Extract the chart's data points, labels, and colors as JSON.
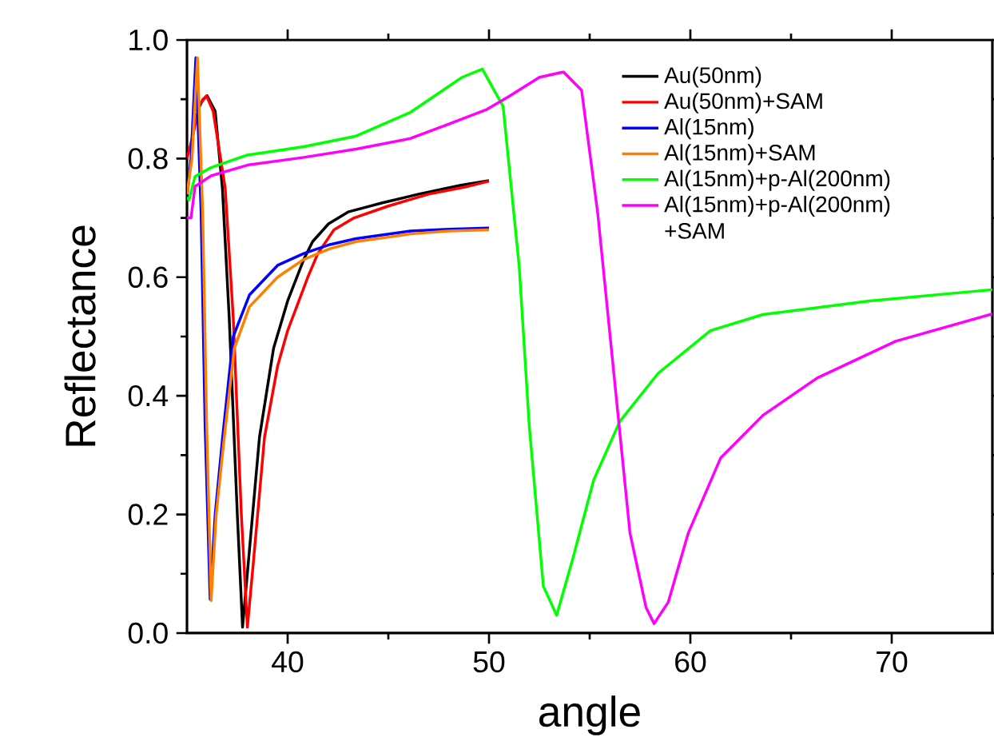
{
  "chart_data": {
    "type": "line",
    "xlabel": "angle",
    "ylabel": "Reflectance",
    "xlim": [
      35,
      75
    ],
    "ylim": [
      0,
      1
    ],
    "xticks": [
      40,
      50,
      60,
      70
    ],
    "yticks": [
      {
        "value": 0,
        "label": "0.0"
      },
      {
        "value": 0.2,
        "label": "0.2"
      },
      {
        "value": 0.4,
        "label": "0.4"
      },
      {
        "value": 0.6,
        "label": "0.6"
      },
      {
        "value": 0.8,
        "label": "0.8"
      },
      {
        "value": 1,
        "label": "1.0"
      }
    ],
    "grid": false,
    "legend": "top right",
    "marker": "none",
    "line_style": "solid",
    "series": [
      {
        "name": "Au(50nm)",
        "color": "#000000",
        "x": [
          35.5,
          35.8,
          36.0,
          36.4,
          36.76,
          37.1,
          37.5,
          37.76,
          38.05,
          38.6,
          39.3,
          40.0,
          40.8,
          41.24,
          42.03,
          43.0,
          44.66,
          46.5,
          48.6,
          50.0
        ],
        "values": [
          0.88,
          0.9,
          0.906,
          0.88,
          0.75,
          0.53,
          0.2,
          0.01,
          0.12,
          0.33,
          0.48,
          0.56,
          0.63,
          0.66,
          0.69,
          0.71,
          0.725,
          0.74,
          0.755,
          0.763
        ]
      },
      {
        "name": "Au(50nm)+SAM",
        "color": "#ff0000",
        "x": [
          35.0,
          35.3,
          35.6,
          35.97,
          36.3,
          36.9,
          37.3,
          37.7,
          38.0,
          38.3,
          38.85,
          39.5,
          40.0,
          41.0,
          41.5,
          42.3,
          43.3,
          45.0,
          47.0,
          48.8,
          50.0
        ],
        "values": [
          0.8,
          0.84,
          0.89,
          0.906,
          0.88,
          0.75,
          0.53,
          0.2,
          0.01,
          0.12,
          0.33,
          0.45,
          0.51,
          0.6,
          0.64,
          0.68,
          0.7,
          0.72,
          0.74,
          0.752,
          0.762
        ]
      },
      {
        "name": "Al(15nm)",
        "color": "#0000ff",
        "x": [
          35.0,
          35.2,
          35.44,
          35.7,
          35.9,
          36.15,
          36.4,
          36.77,
          37.3,
          38.1,
          39.5,
          40.8,
          42.1,
          43.4,
          46.1,
          48.0,
          50.0
        ],
        "values": [
          0.735,
          0.8,
          0.97,
          0.71,
          0.35,
          0.057,
          0.2,
          0.33,
          0.5,
          0.57,
          0.62,
          0.64,
          0.655,
          0.665,
          0.678,
          0.681,
          0.683
        ]
      },
      {
        "name": "Al(15nm)+SAM",
        "color": "#ff8000",
        "x": [
          35.0,
          35.25,
          35.52,
          35.78,
          35.98,
          36.2,
          36.45,
          36.82,
          37.35,
          38.1,
          39.5,
          40.8,
          42.1,
          43.4,
          46.1,
          48.0,
          50.0
        ],
        "values": [
          0.74,
          0.8,
          0.97,
          0.71,
          0.35,
          0.055,
          0.2,
          0.32,
          0.48,
          0.55,
          0.6,
          0.63,
          0.648,
          0.66,
          0.673,
          0.678,
          0.68
        ]
      },
      {
        "name": "Al(15nm)+p-Al(200nm)",
        "color": "#00ff00",
        "x": [
          35.0,
          35.1,
          35.4,
          36.2,
          38.0,
          40.8,
          43.4,
          46.1,
          48.66,
          49.67,
          50.7,
          51.5,
          52.0,
          52.7,
          53.36,
          54.15,
          55.2,
          56.5,
          58.4,
          61.0,
          63.6,
          68.9,
          75.0
        ],
        "values": [
          0.735,
          0.73,
          0.77,
          0.785,
          0.806,
          0.82,
          0.838,
          0.878,
          0.937,
          0.951,
          0.888,
          0.618,
          0.349,
          0.079,
          0.03,
          0.124,
          0.258,
          0.357,
          0.438,
          0.51,
          0.537,
          0.56,
          0.579
        ]
      },
      {
        "name": "Al(15nm)+p-Al(200nm) +SAM",
        "color": "#ff00ff",
        "x": [
          35.0,
          35.2,
          35.4,
          36.2,
          38.0,
          40.8,
          43.4,
          46.1,
          47.83,
          49.9,
          51.0,
          52.5,
          53.7,
          54.6,
          55.4,
          56.2,
          57.0,
          57.8,
          58.2,
          58.9,
          59.9,
          61.5,
          63.6,
          66.3,
          70.2,
          75.0
        ],
        "values": [
          0.7,
          0.7,
          0.753,
          0.771,
          0.789,
          0.802,
          0.816,
          0.834,
          0.856,
          0.883,
          0.905,
          0.937,
          0.946,
          0.915,
          0.708,
          0.438,
          0.169,
          0.043,
          0.016,
          0.052,
          0.169,
          0.295,
          0.367,
          0.43,
          0.492,
          0.538
        ]
      }
    ]
  }
}
